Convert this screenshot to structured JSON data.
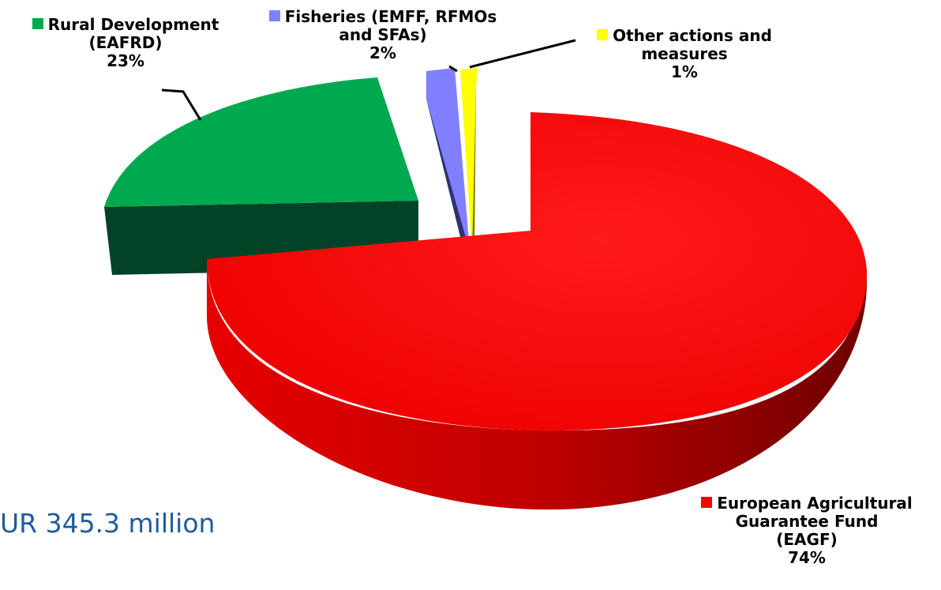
{
  "total_label": "UR 345.3 million",
  "chart_data": {
    "type": "pie",
    "style": "3d exploded",
    "legend": "inline labels",
    "slices": [
      {
        "name": "European Agricultural Guarantee Fund (EAGF)",
        "lines": [
          "European Agricultural",
          "Guarantee Fund",
          "(EAGF)"
        ],
        "pct_label": "74%",
        "value": 74,
        "color": "#ff0000"
      },
      {
        "name": "Rural Development (EAFRD)",
        "lines": [
          "Rural Development",
          "(EAFRD)"
        ],
        "pct_label": "23%",
        "value": 23,
        "color": "#00a94f"
      },
      {
        "name": "Fisheries (EMFF, RFMOs and SFAs)",
        "lines": [
          "Fisheries (EMFF, RFMOs",
          "and SFAs)"
        ],
        "pct_label": "2%",
        "value": 2,
        "color": "#8080ff"
      },
      {
        "name": "Other actions and measures",
        "lines": [
          "Other actions and",
          "measures"
        ],
        "pct_label": "1%",
        "value": 1,
        "color": "#ffff00"
      }
    ]
  }
}
